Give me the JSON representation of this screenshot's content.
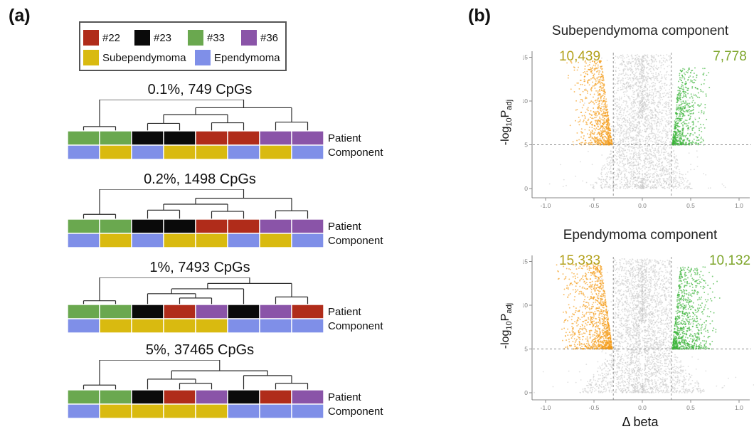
{
  "panel_a": {
    "label": "(a)",
    "legend": {
      "patients": [
        {
          "label": "#22",
          "color": "#b02c1a"
        },
        {
          "label": "#23",
          "color": "#0a0a0a"
        },
        {
          "label": "#33",
          "color": "#6aa84f"
        },
        {
          "label": "#36",
          "color": "#8a54a8"
        }
      ],
      "components": [
        {
          "label": "Subependymoma",
          "color": "#d9ba10"
        },
        {
          "label": "Ependymoma",
          "color": "#7f8fe8"
        }
      ]
    },
    "row_labels": [
      "Patient",
      "Component"
    ]
  },
  "panel_b": {
    "label": "(b)",
    "xlabel": "Δ beta",
    "ylabel": {
      "prefix": "-log",
      "base": "10",
      "p": "P",
      "sub": "adj"
    }
  },
  "chart_data": [
    {
      "type": "heatmap",
      "title": "0.1%, 749 CpGs",
      "rows": [
        "Patient",
        "Component"
      ],
      "patients": [
        "#33",
        "#33",
        "#23",
        "#23",
        "#22",
        "#22",
        "#36",
        "#36"
      ],
      "components": [
        "Ependymoma",
        "Subependymoma",
        "Ependymoma",
        "Subependymoma",
        "Subependymoma",
        "Ependymoma",
        "Subependymoma",
        "Ependymoma"
      ],
      "tree": {
        "h": 1.0,
        "c": [
          {
            "h": 0.14,
            "c": [
              0,
              1
            ]
          },
          {
            "h": 0.74,
            "c": [
              {
                "h": 0.52,
                "c": [
                  {
                    "h": 0.24,
                    "c": [
                      2,
                      3
                    ]
                  },
                  {
                    "h": 0.26,
                    "c": [
                      4,
                      5
                    ]
                  }
                ]
              },
              {
                "h": 0.28,
                "c": [
                  6,
                  7
                ]
              }
            ]
          }
        ]
      }
    },
    {
      "type": "heatmap",
      "title": "0.2%, 1498 CpGs",
      "rows": [
        "Patient",
        "Component"
      ],
      "patients": [
        "#33",
        "#33",
        "#23",
        "#23",
        "#22",
        "#22",
        "#36",
        "#36"
      ],
      "components": [
        "Ependymoma",
        "Subependymoma",
        "Ependymoma",
        "Subependymoma",
        "Subependymoma",
        "Ependymoma",
        "Subependymoma",
        "Ependymoma"
      ],
      "tree": {
        "h": 1.0,
        "c": [
          {
            "h": 0.16,
            "c": [
              0,
              1
            ]
          },
          {
            "h": 0.7,
            "c": [
              {
                "h": 0.5,
                "c": [
                  {
                    "h": 0.3,
                    "c": [
                      2,
                      3
                    ]
                  },
                  {
                    "h": 0.26,
                    "c": [
                      4,
                      5
                    ]
                  }
                ]
              },
              {
                "h": 0.28,
                "c": [
                  6,
                  7
                ]
              }
            ]
          }
        ]
      }
    },
    {
      "type": "heatmap",
      "title": "1%, 7493 CpGs",
      "rows": [
        "Patient",
        "Component"
      ],
      "patients": [
        "#33",
        "#33",
        "#23",
        "#22",
        "#36",
        "#23",
        "#36",
        "#22"
      ],
      "components": [
        "Ependymoma",
        "Subependymoma",
        "Subependymoma",
        "Subependymoma",
        "Subependymoma",
        "Ependymoma",
        "Ependymoma",
        "Ependymoma"
      ],
      "tree": {
        "h": 1.0,
        "c": [
          {
            "h": 0.14,
            "c": [
              0,
              1
            ]
          },
          {
            "h": 0.78,
            "c": [
              {
                "h": 0.58,
                "c": [
                  {
                    "h": 0.4,
                    "c": [
                      2,
                      {
                        "h": 0.24,
                        "c": [
                          3,
                          4
                        ]
                      }
                    ]
                  },
                  5
                ]
              },
              {
                "h": 0.28,
                "c": [
                  6,
                  7
                ]
              }
            ]
          }
        ]
      }
    },
    {
      "type": "heatmap",
      "title": "5%, 37465 CpGs",
      "rows": [
        "Patient",
        "Component"
      ],
      "patients": [
        "#33",
        "#33",
        "#23",
        "#22",
        "#36",
        "#23",
        "#22",
        "#36"
      ],
      "components": [
        "Ependymoma",
        "Subependymoma",
        "Subependymoma",
        "Subependymoma",
        "Subependymoma",
        "Ependymoma",
        "Ependymoma",
        "Ependymoma"
      ],
      "tree": {
        "h": 1.0,
        "c": [
          {
            "h": 0.16,
            "c": [
              0,
              1
            ]
          },
          {
            "h": 0.64,
            "c": [
              {
                "h": 0.36,
                "c": [
                  2,
                  {
                    "h": 0.22,
                    "c": [
                      3,
                      4
                    ]
                  }
                ]
              },
              {
                "h": 0.48,
                "c": [
                  5,
                  {
                    "h": 0.22,
                    "c": [
                      6,
                      7
                    ]
                  }
                ]
              }
            ]
          }
        ]
      }
    },
    {
      "type": "scatter",
      "subtype": "volcano",
      "title": "Subependymoma component",
      "left_label": "10,439",
      "right_label": "7,778",
      "left_count": 10439,
      "right_count": 7778,
      "xlabel": "Δ beta",
      "ylabel": "-log10 Padj",
      "xlim": [
        -1.05,
        1.1
      ],
      "ylim": [
        0,
        15.5
      ],
      "x_ticks": [
        -1.0,
        -0.5,
        0.0,
        0.5,
        1.0
      ],
      "y_ticks": [
        0,
        5,
        10,
        15
      ],
      "vline_thresholds": [
        -0.3,
        0.3
      ],
      "hline_threshold": 5,
      "colors": {
        "hyper": "#f59b17",
        "hypo": "#3bb339",
        "ns": "#c6c6c6",
        "left_label": "#b3a11c",
        "right_label": "#7fa62c"
      },
      "cloud": {
        "seed": 7,
        "grayN": 3000,
        "w0": 0.52,
        "orangeN": 820,
        "ox": 0.42,
        "oySpan": 9.6,
        "greenN": 660,
        "gx": 0.36,
        "gySpan": 8.8
      }
    },
    {
      "type": "scatter",
      "subtype": "volcano",
      "title": "Ependymoma component",
      "left_label": "15,333",
      "right_label": "10,132",
      "left_count": 15333,
      "right_count": 10132,
      "xlabel": "Δ beta",
      "ylabel": "-log10 Padj",
      "xlim": [
        -1.05,
        1.1
      ],
      "ylim": [
        0,
        15.5
      ],
      "x_ticks": [
        -1.0,
        -0.5,
        0.0,
        0.5,
        1.0
      ],
      "y_ticks": [
        0,
        5,
        10,
        15
      ],
      "vline_thresholds": [
        -0.3,
        0.3
      ],
      "hline_threshold": 5,
      "colors": {
        "hyper": "#f59b17",
        "hypo": "#3bb339",
        "ns": "#c6c6c6",
        "left_label": "#b3a11c",
        "right_label": "#7fa62c"
      },
      "cloud": {
        "seed": 21,
        "grayN": 3500,
        "w0": 0.66,
        "orangeN": 1150,
        "ox": 0.54,
        "oySpan": 9.8,
        "greenN": 920,
        "gx": 0.46,
        "gySpan": 9.4
      }
    }
  ]
}
